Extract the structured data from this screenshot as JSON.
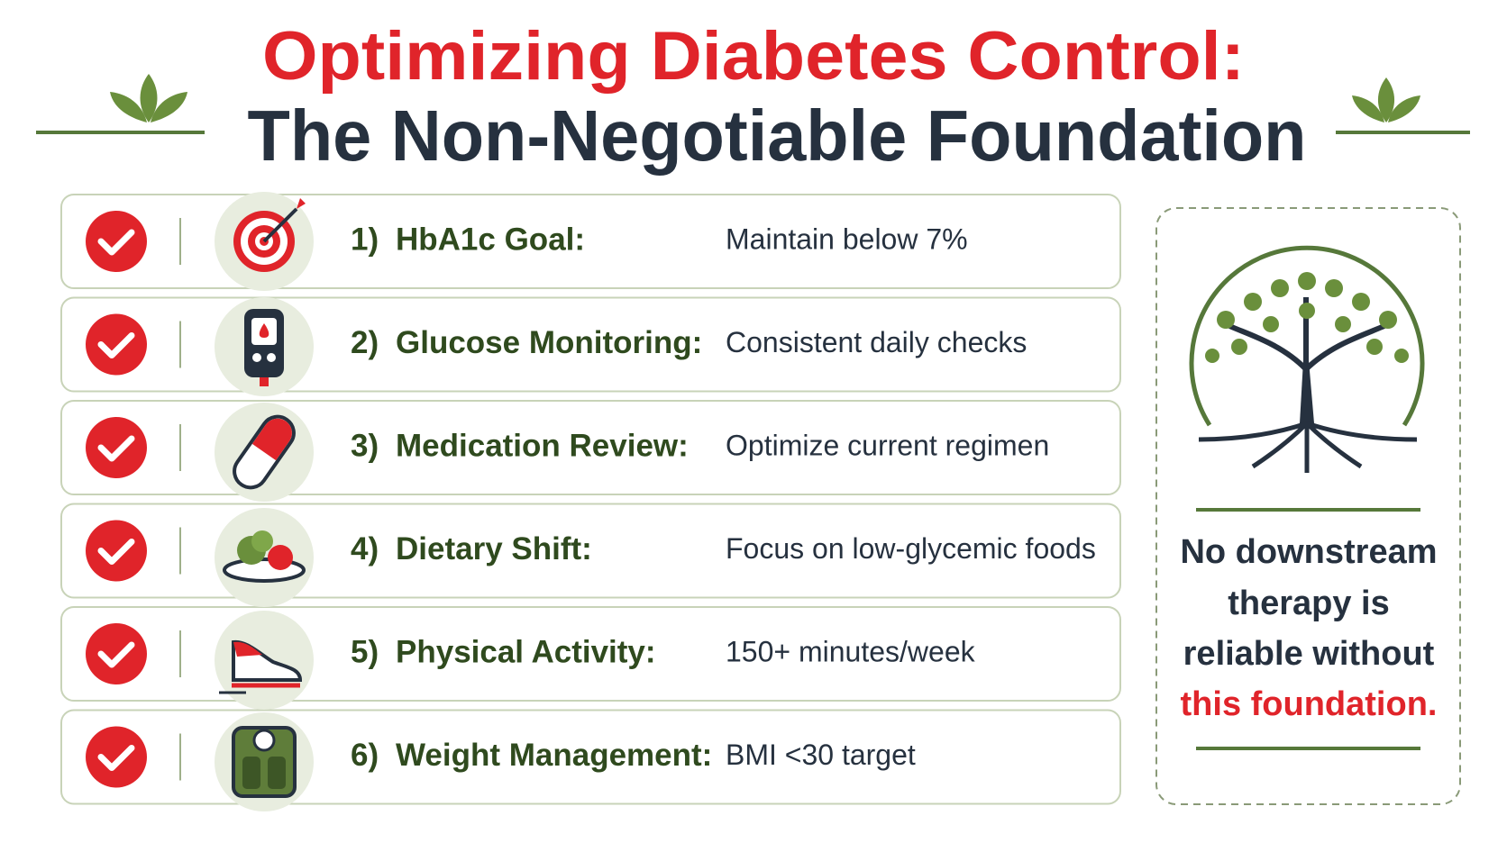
{
  "header": {
    "title_line1": "Optimizing Diabetes Control:",
    "title_line2": "The Non-Negotiable Foundation"
  },
  "items": [
    {
      "number": "1)",
      "label": "HbA1c Goal:",
      "detail": "Maintain below 7%"
    },
    {
      "number": "2)",
      "label": "Glucose Monitoring:",
      "detail": "Consistent daily checks"
    },
    {
      "number": "3)",
      "label": "Medication Review:",
      "detail": "Optimize current regimen"
    },
    {
      "number": "4)",
      "label": "Dietary Shift:",
      "detail": "Focus on low-glycemic foods"
    },
    {
      "number": "5)",
      "label": "Physical Activity:",
      "detail": "150+ minutes/week"
    },
    {
      "number": "6)",
      "label": "Weight Management:",
      "detail": "BMI <30 target"
    }
  ],
  "callout": {
    "line1": "No downstream",
    "line2": "therapy is",
    "line3": "reliable without",
    "highlight": "this foundation."
  }
}
